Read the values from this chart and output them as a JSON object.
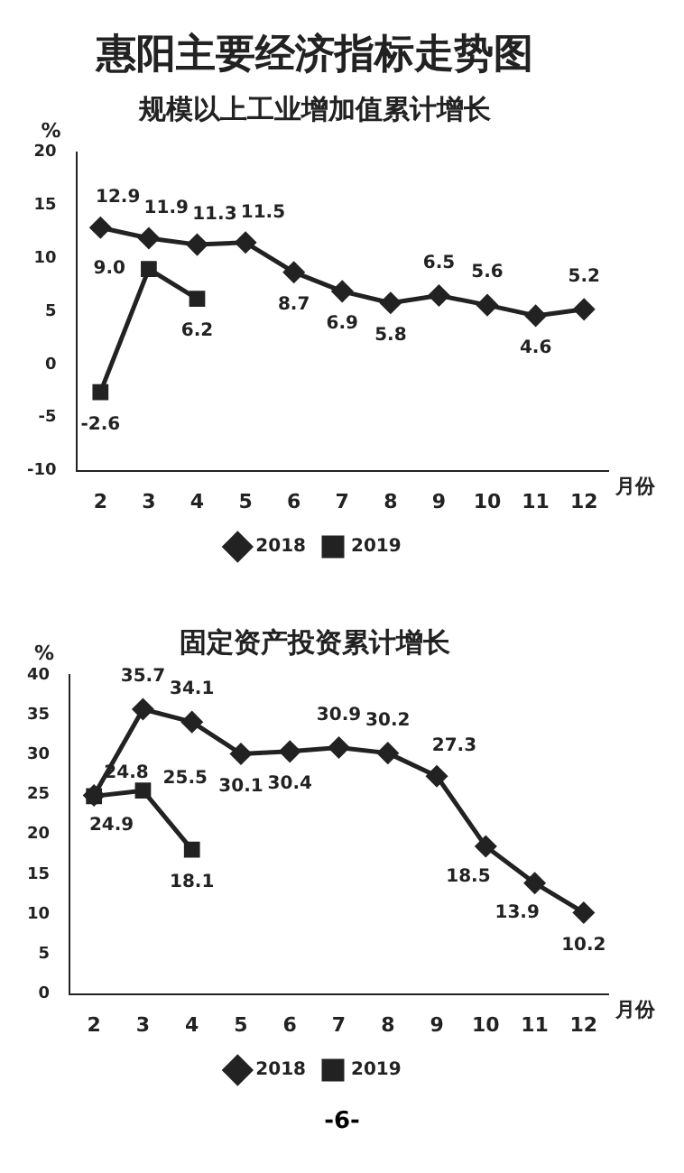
{
  "chart_data": [
    {
      "type": "line",
      "title": "惠阳主要经济指标走势图",
      "subtitle": "规模以上工业增加值累计增长",
      "ylabel": "%",
      "xlabel": "月份",
      "categories": [
        "2",
        "3",
        "4",
        "5",
        "6",
        "7",
        "8",
        "9",
        "10",
        "11",
        "12"
      ],
      "series": [
        {
          "name": "2018",
          "color": "#222222",
          "marker": "diamond",
          "values": [
            12.9,
            11.9,
            11.3,
            11.5,
            8.7,
            6.9,
            5.8,
            6.5,
            5.6,
            4.6,
            5.2
          ]
        },
        {
          "name": "2019",
          "color": "#222222",
          "marker": "square",
          "values": [
            -2.6,
            9.0,
            6.2,
            null,
            null,
            null,
            null,
            null,
            null,
            null,
            null
          ],
          "value_labels": [
            "-2.6",
            "9.0",
            "6.2",
            null,
            null,
            null,
            null,
            null,
            null,
            null,
            null
          ]
        }
      ],
      "ylim": [
        -10,
        20
      ],
      "yticks": [
        -10,
        -5,
        0,
        5,
        10,
        15,
        20
      ],
      "data_labels": true,
      "legend": "bottom",
      "grid": false
    },
    {
      "type": "line",
      "title": "固定资产投资累计增长",
      "ylabel": "%",
      "xlabel": "月份",
      "categories": [
        "2",
        "3",
        "4",
        "5",
        "6",
        "7",
        "8",
        "9",
        "10",
        "11",
        "12"
      ],
      "series": [
        {
          "name": "2018",
          "color": "#222222",
          "marker": "diamond",
          "values": [
            24.9,
            35.7,
            34.1,
            30.1,
            30.4,
            30.9,
            30.2,
            27.3,
            18.5,
            13.9,
            10.2
          ]
        },
        {
          "name": "2019",
          "color": "#222222",
          "marker": "square",
          "values": [
            24.8,
            25.5,
            18.1,
            null,
            null,
            null,
            null,
            null,
            null,
            null,
            null
          ]
        }
      ],
      "ylim": [
        0,
        40
      ],
      "yticks": [
        0,
        5,
        10,
        15,
        20,
        25,
        30,
        35,
        40
      ],
      "data_labels": true,
      "legend": "bottom",
      "grid": false,
      "annotations": [
        "-6-"
      ]
    }
  ]
}
